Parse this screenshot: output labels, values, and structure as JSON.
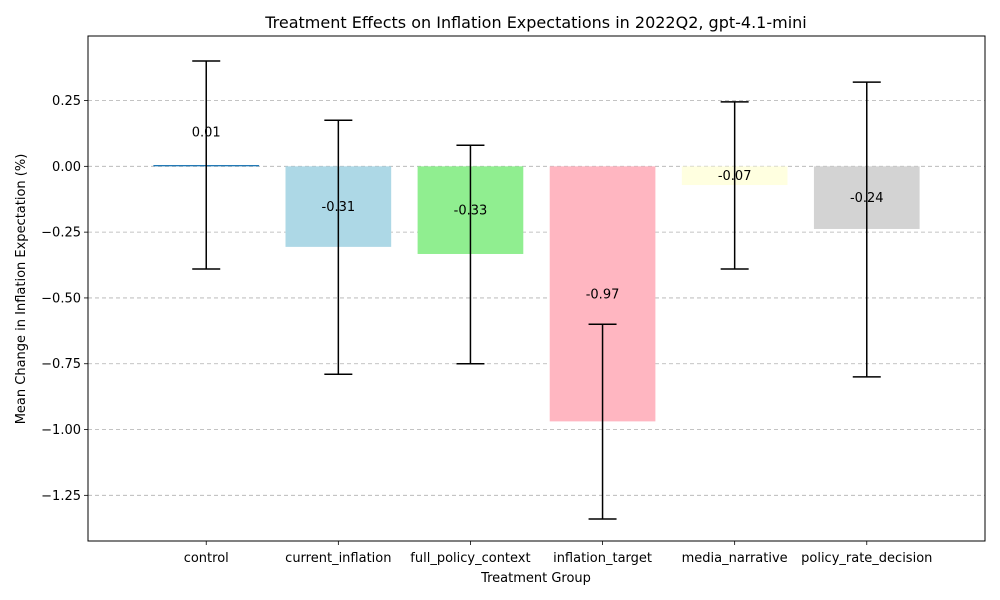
{
  "chart_data": {
    "type": "bar",
    "title": "Treatment Effects on Inflation Expectations in 2022Q2, gpt-4.1-mini",
    "xlabel": "Treatment Group",
    "ylabel": "Mean Change in Inflation Expectation (%)",
    "categories": [
      "control",
      "current_inflation",
      "full_policy_context",
      "inflation_target",
      "media_narrative",
      "policy_rate_decision"
    ],
    "values": [
      0.005,
      -0.306,
      -0.333,
      -0.969,
      -0.071,
      -0.238
    ],
    "error_lower": [
      -0.39,
      -0.79,
      -0.75,
      -1.34,
      -0.39,
      -0.8
    ],
    "error_upper": [
      0.4,
      0.175,
      0.08,
      -0.6,
      0.245,
      0.32
    ],
    "data_labels": [
      "0.01",
      "-0.31",
      "-0.33",
      "-0.97",
      "-0.07",
      "-0.24"
    ],
    "colors": [
      "#1f77b4",
      "#add8e6",
      "#90ee90",
      "#ffb6c1",
      "#ffffe0",
      "#d3d3d3"
    ],
    "ylim": [
      -1.4235,
      0.4952
    ],
    "yticks": [
      0.25,
      0.0,
      -0.25,
      -0.5,
      -0.75,
      -1.0,
      -1.25
    ],
    "ytick_labels": [
      "0.25",
      "0.00",
      "−0.25",
      "−0.50",
      "−0.75",
      "−1.00",
      "−1.25"
    ],
    "grid": "y-dashed",
    "legend": "none"
  }
}
